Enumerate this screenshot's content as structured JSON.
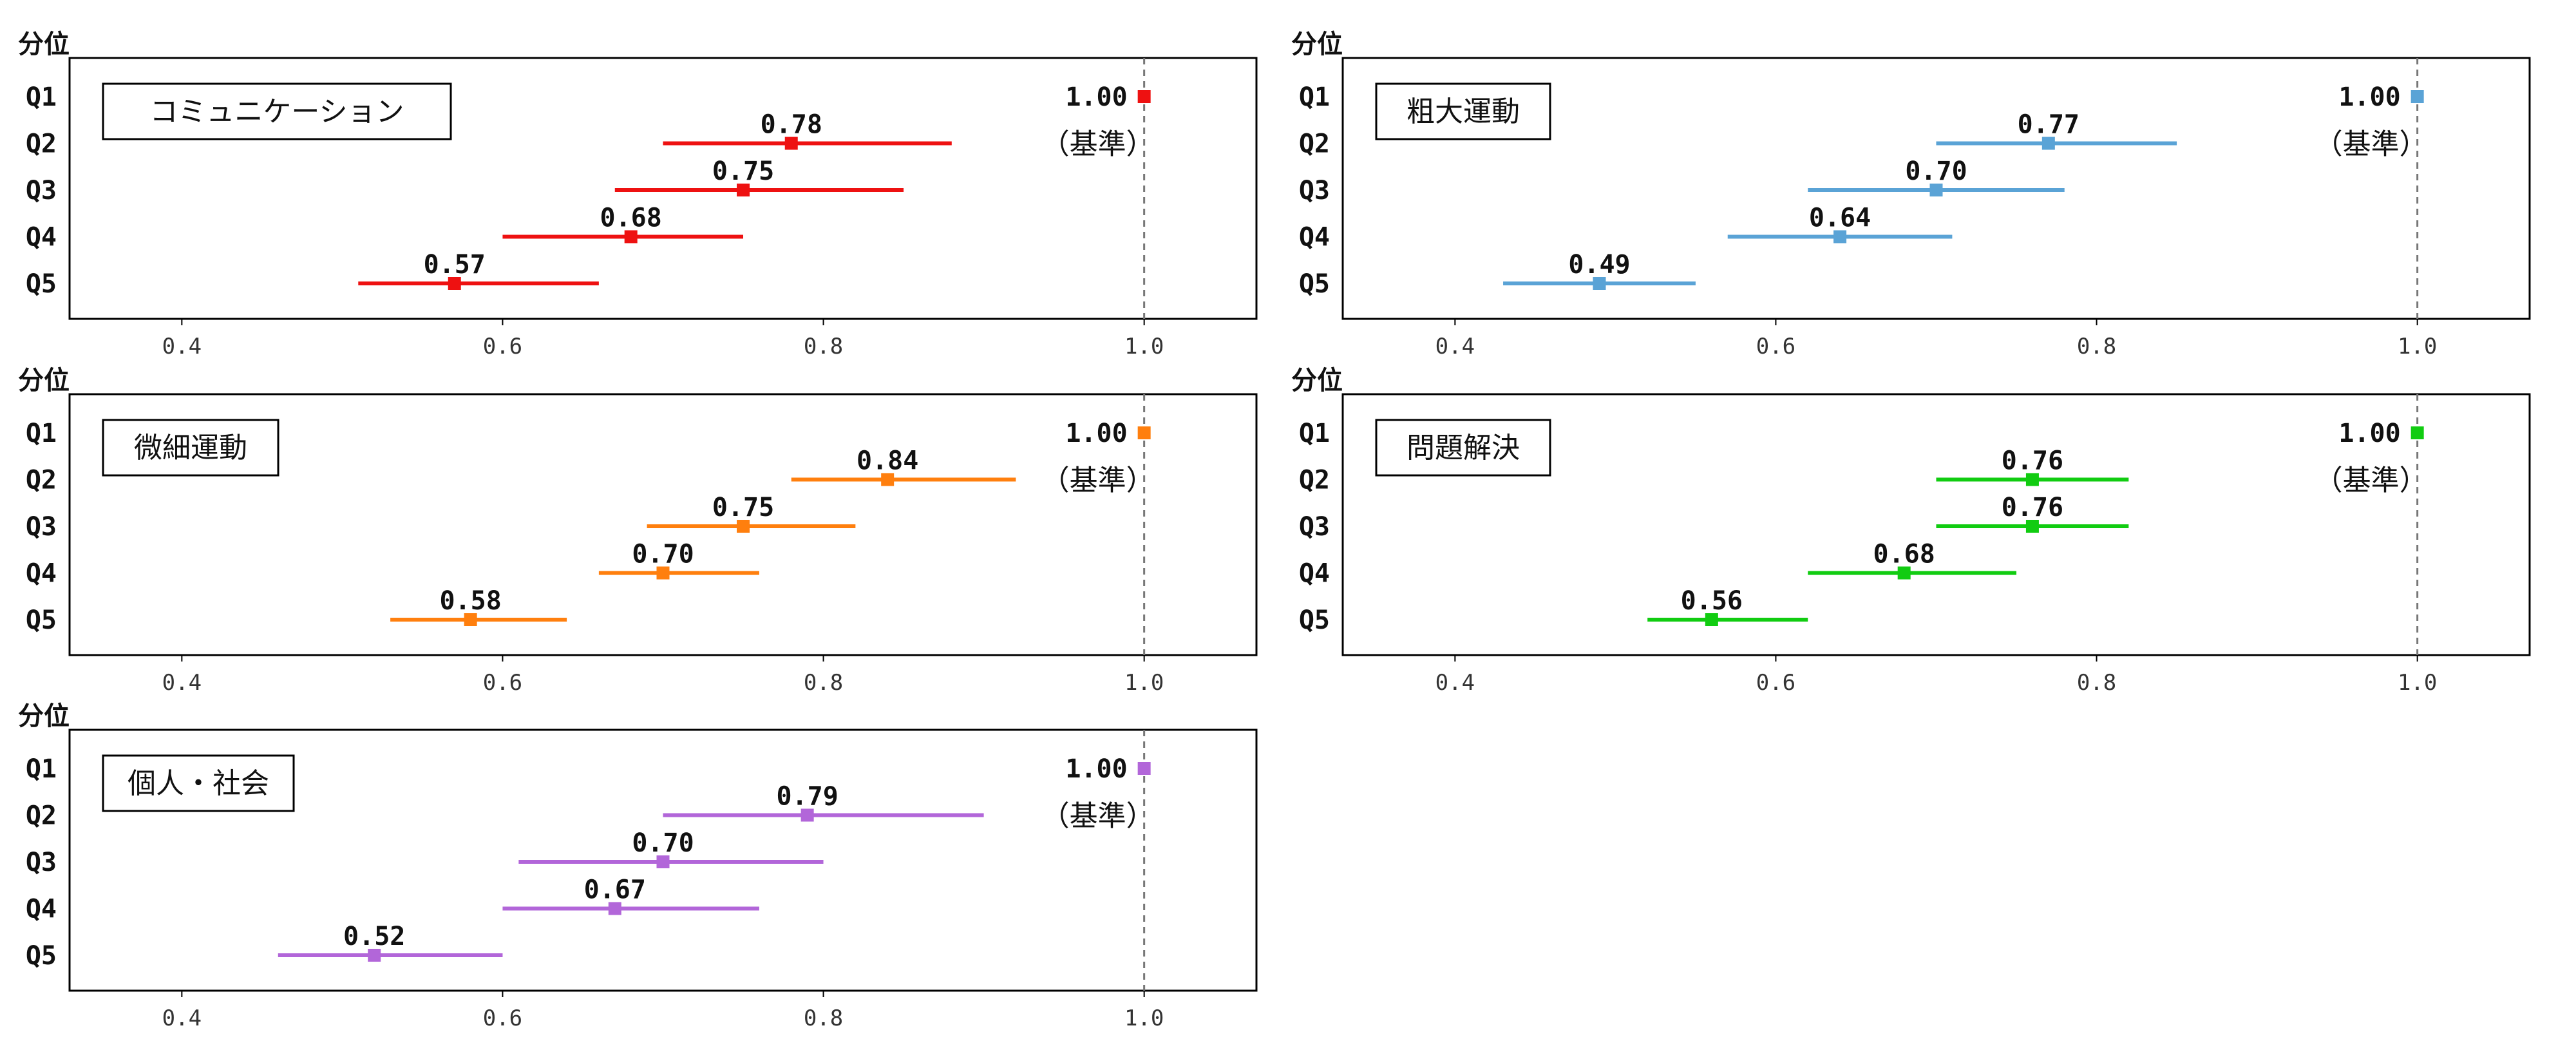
{
  "chart_data": [
    {
      "type": "forest",
      "title": "コミュニケーション",
      "color": "#ee1111",
      "ylabel": "分位",
      "categories": [
        "Q1",
        "Q2",
        "Q3",
        "Q4",
        "Q5"
      ],
      "values": [
        1.0,
        0.78,
        0.75,
        0.68,
        0.57
      ],
      "value_labels": [
        "1.00",
        "0.78",
        "0.75",
        "0.68",
        "0.57"
      ],
      "ci_low": [
        null,
        0.7,
        0.67,
        0.6,
        0.51
      ],
      "ci_high": [
        null,
        0.88,
        0.85,
        0.75,
        0.66
      ],
      "reference_label": "（基準）",
      "xlim": [
        0.33,
        1.07
      ],
      "xticks": [
        "0.4",
        "0.6",
        "0.8",
        "1.0"
      ]
    },
    {
      "type": "forest",
      "title": "粗大運動",
      "color": "#5aa3d6",
      "ylabel": "分位",
      "categories": [
        "Q1",
        "Q2",
        "Q3",
        "Q4",
        "Q5"
      ],
      "values": [
        1.0,
        0.77,
        0.7,
        0.64,
        0.49
      ],
      "value_labels": [
        "1.00",
        "0.77",
        "0.70",
        "0.64",
        "0.49"
      ],
      "ci_low": [
        null,
        0.7,
        0.62,
        0.57,
        0.43
      ],
      "ci_high": [
        null,
        0.85,
        0.78,
        0.71,
        0.55
      ],
      "reference_label": "（基準）",
      "xlim": [
        0.33,
        1.07
      ],
      "xticks": [
        "0.4",
        "0.6",
        "0.8",
        "1.0"
      ]
    },
    {
      "type": "forest",
      "title": "微細運動",
      "color": "#ff7f0e",
      "ylabel": "分位",
      "categories": [
        "Q1",
        "Q2",
        "Q3",
        "Q4",
        "Q5"
      ],
      "values": [
        1.0,
        0.84,
        0.75,
        0.7,
        0.58
      ],
      "value_labels": [
        "1.00",
        "0.84",
        "0.75",
        "0.70",
        "0.58"
      ],
      "ci_low": [
        null,
        0.78,
        0.69,
        0.66,
        0.53
      ],
      "ci_high": [
        null,
        0.92,
        0.82,
        0.76,
        0.64
      ],
      "reference_label": "（基準）",
      "xlim": [
        0.33,
        1.07
      ],
      "xticks": [
        "0.4",
        "0.6",
        "0.8",
        "1.0"
      ]
    },
    {
      "type": "forest",
      "title": "問題解決",
      "color": "#11cc11",
      "ylabel": "分位",
      "categories": [
        "Q1",
        "Q2",
        "Q3",
        "Q4",
        "Q5"
      ],
      "values": [
        1.0,
        0.76,
        0.76,
        0.68,
        0.56
      ],
      "value_labels": [
        "1.00",
        "0.76",
        "0.76",
        "0.68",
        "0.56"
      ],
      "ci_low": [
        null,
        0.7,
        0.7,
        0.62,
        0.52
      ],
      "ci_high": [
        null,
        0.82,
        0.82,
        0.75,
        0.62
      ],
      "reference_label": "（基準）",
      "xlim": [
        0.33,
        1.07
      ],
      "xticks": [
        "0.4",
        "0.6",
        "0.8",
        "1.0"
      ]
    },
    {
      "type": "forest",
      "title": "個人・社会",
      "color": "#b266d9",
      "ylabel": "分位",
      "categories": [
        "Q1",
        "Q2",
        "Q3",
        "Q4",
        "Q5"
      ],
      "values": [
        1.0,
        0.79,
        0.7,
        0.67,
        0.52
      ],
      "value_labels": [
        "1.00",
        "0.79",
        "0.70",
        "0.67",
        "0.52"
      ],
      "ci_low": [
        null,
        0.7,
        0.61,
        0.6,
        0.46
      ],
      "ci_high": [
        null,
        0.9,
        0.8,
        0.76,
        0.6
      ],
      "reference_label": "（基準）",
      "xlim": [
        0.33,
        1.07
      ],
      "xticks": [
        "0.4",
        "0.6",
        "0.8",
        "1.0"
      ]
    }
  ]
}
